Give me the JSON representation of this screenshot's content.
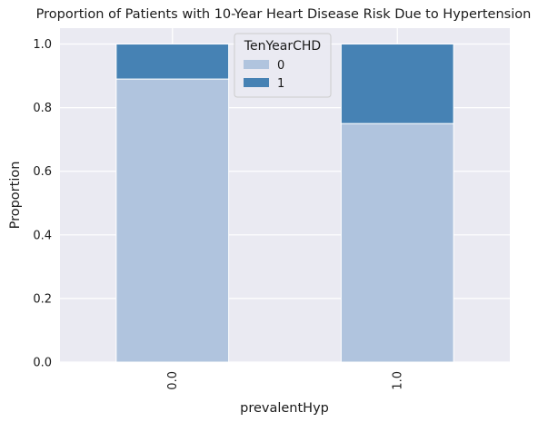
{
  "chart_data": {
    "type": "bar",
    "stacked": true,
    "title": "Proportion of Patients with 10-Year Heart Disease Risk Due to Hypertension",
    "xlabel": "prevalentHyp",
    "ylabel": "Proportion",
    "categories": [
      "0.0",
      "1.0"
    ],
    "series": [
      {
        "name": "0",
        "values": [
          0.89,
          0.75
        ],
        "color": "#b0c4de"
      },
      {
        "name": "1",
        "values": [
          0.11,
          0.25
        ],
        "color": "#4682b4"
      }
    ],
    "ylim": [
      0,
      1.05
    ],
    "yticks": [
      "0.0",
      "0.2",
      "0.4",
      "0.6",
      "0.8",
      "1.0"
    ],
    "legend": {
      "title": "TenYearCHD",
      "placement": "top-center"
    },
    "grid": true,
    "background": "#eaeaf2"
  }
}
